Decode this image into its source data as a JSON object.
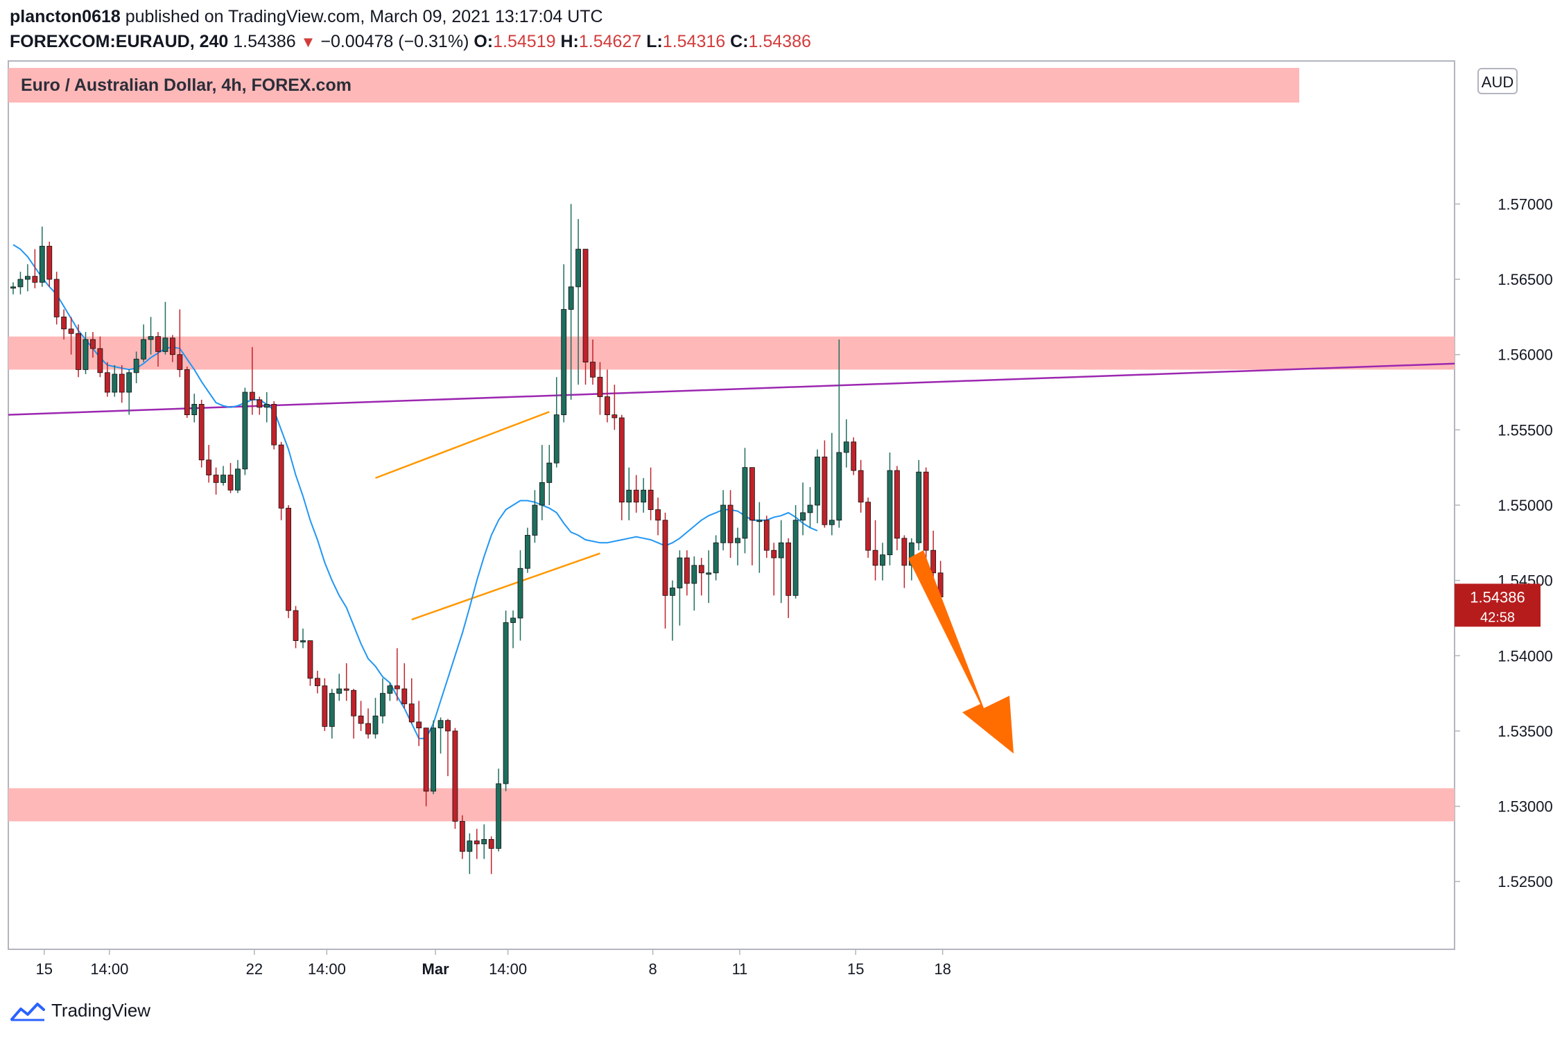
{
  "header": {
    "publisher": "plancton0618",
    "published_text": "published on TradingView.com, March 09, 2021 13:17:04 UTC",
    "symbol": "FOREXCOM:EURAUD, 240",
    "last": "1.54386",
    "change": "−0.00478 (−0.31%)",
    "o_label": "O:",
    "o_value": "1.54519",
    "h_label": "H:",
    "h_value": "1.54627",
    "l_label": "L:",
    "l_value": "1.54316",
    "c_label": "C:",
    "c_value": "1.54386"
  },
  "chart_title": "Euro / Australian Dollar, 4h, FOREX.com",
  "currency_badge": "AUD",
  "price_tag": {
    "price": "1.54386",
    "countdown": "42:58"
  },
  "footer": {
    "brand": "TradingView"
  },
  "colors": {
    "up": "#1e6e5e",
    "down": "#c0222a",
    "ma": "#2196f3",
    "zone": "#ffb8b8",
    "trendline": "#9c27b0",
    "channel": "#ff9800",
    "arrow": "#ff6d00",
    "tag": "#b71c1c"
  },
  "chart_data": {
    "type": "candlestick",
    "title": "Euro / Australian Dollar, 4h, FOREX.com",
    "y_axis": {
      "range": [
        1.5205,
        1.5795
      ],
      "ticks": [
        "1.52500",
        "1.53000",
        "1.53500",
        "1.54000",
        "1.54500",
        "1.55000",
        "1.55500",
        "1.56000",
        "1.56500",
        "1.57000"
      ]
    },
    "x_axis": {
      "ticks": [
        {
          "label": "15",
          "bar": 4
        },
        {
          "label": "14:00",
          "bar": 13
        },
        {
          "label": "22",
          "bar": 33
        },
        {
          "label": "14:00",
          "bar": 43
        },
        {
          "label": "Mar",
          "bar": 58
        },
        {
          "label": "14:00",
          "bar": 68
        },
        {
          "label": "8",
          "bar": 88
        },
        {
          "label": "11",
          "bar": 100
        },
        {
          "label": "15",
          "bar": 116
        },
        {
          "label": "18",
          "bar": 128
        }
      ]
    },
    "candles": [
      [
        1.5645,
        1.5645,
        1.564,
        1.5648
      ],
      [
        1.5645,
        1.565,
        1.564,
        1.5655
      ],
      [
        1.565,
        1.5652,
        1.5642,
        1.566
      ],
      [
        1.5652,
        1.5648,
        1.5644,
        1.567
      ],
      [
        1.5648,
        1.5672,
        1.5645,
        1.5685
      ],
      [
        1.5672,
        1.565,
        1.5645,
        1.5675
      ],
      [
        1.565,
        1.5625,
        1.562,
        1.5655
      ],
      [
        1.5625,
        1.5617,
        1.561,
        1.563
      ],
      [
        1.5617,
        1.5614,
        1.56,
        1.5625
      ],
      [
        1.5614,
        1.559,
        1.5585,
        1.562
      ],
      [
        1.559,
        1.561,
        1.5587,
        1.5615
      ],
      [
        1.561,
        1.5604,
        1.5598,
        1.5615
      ],
      [
        1.5604,
        1.5588,
        1.5585,
        1.5612
      ],
      [
        1.5588,
        1.5575,
        1.5572,
        1.5595
      ],
      [
        1.5575,
        1.5587,
        1.5572,
        1.5593
      ],
      [
        1.5587,
        1.5575,
        1.5568,
        1.5593
      ],
      [
        1.5575,
        1.5588,
        1.556,
        1.559
      ],
      [
        1.5588,
        1.5597,
        1.5581,
        1.5602
      ],
      [
        1.5597,
        1.561,
        1.5595,
        1.562
      ],
      [
        1.561,
        1.5612,
        1.56,
        1.5625
      ],
      [
        1.5612,
        1.5602,
        1.5592,
        1.5615
      ],
      [
        1.5602,
        1.5611,
        1.56,
        1.5635
      ],
      [
        1.5611,
        1.56,
        1.5595,
        1.5613
      ],
      [
        1.56,
        1.559,
        1.5585,
        1.563
      ],
      [
        1.559,
        1.556,
        1.5558,
        1.5592
      ],
      [
        1.556,
        1.5567,
        1.5555,
        1.5574
      ],
      [
        1.5567,
        1.553,
        1.5525,
        1.557
      ],
      [
        1.553,
        1.552,
        1.5515,
        1.554
      ],
      [
        1.552,
        1.5515,
        1.5507,
        1.5525
      ],
      [
        1.5515,
        1.552,
        1.5513,
        1.5526
      ],
      [
        1.552,
        1.551,
        1.5508,
        1.5528
      ],
      [
        1.551,
        1.5524,
        1.5508,
        1.553
      ],
      [
        1.5524,
        1.5575,
        1.552,
        1.5578
      ],
      [
        1.5575,
        1.557,
        1.556,
        1.5605
      ],
      [
        1.557,
        1.5565,
        1.556,
        1.5572
      ],
      [
        1.5565,
        1.5567,
        1.5555,
        1.5575
      ],
      [
        1.5567,
        1.554,
        1.5537,
        1.5569
      ],
      [
        1.554,
        1.5498,
        1.549,
        1.5542
      ],
      [
        1.5498,
        1.543,
        1.5425,
        1.55
      ],
      [
        1.543,
        1.541,
        1.5405,
        1.5433
      ],
      [
        1.541,
        1.541,
        1.5405,
        1.5418
      ],
      [
        1.541,
        1.5385,
        1.538,
        1.541
      ],
      [
        1.5385,
        1.538,
        1.5375,
        1.539
      ],
      [
        1.538,
        1.5353,
        1.535,
        1.5385
      ],
      [
        1.5353,
        1.5375,
        1.5345,
        1.5378
      ],
      [
        1.5375,
        1.5378,
        1.537,
        1.5388
      ],
      [
        1.5378,
        1.5377,
        1.537,
        1.5395
      ],
      [
        1.5377,
        1.536,
        1.5345,
        1.5378
      ],
      [
        1.536,
        1.5355,
        1.535,
        1.537
      ],
      [
        1.5355,
        1.5348,
        1.5345,
        1.5365
      ],
      [
        1.5348,
        1.536,
        1.5345,
        1.5372
      ],
      [
        1.536,
        1.5375,
        1.5355,
        1.5385
      ],
      [
        1.5375,
        1.538,
        1.537,
        1.5382
      ],
      [
        1.538,
        1.5378,
        1.537,
        1.5405
      ],
      [
        1.5378,
        1.5368,
        1.5365,
        1.5395
      ],
      [
        1.5368,
        1.5356,
        1.5355,
        1.5385
      ],
      [
        1.5356,
        1.5352,
        1.534,
        1.537
      ],
      [
        1.5352,
        1.531,
        1.53,
        1.5352
      ],
      [
        1.531,
        1.5352,
        1.5308,
        1.5357
      ],
      [
        1.5352,
        1.5357,
        1.5335,
        1.5359
      ],
      [
        1.5357,
        1.535,
        1.532,
        1.5358
      ],
      [
        1.535,
        1.529,
        1.5285,
        1.5352
      ],
      [
        1.529,
        1.527,
        1.5265,
        1.5294
      ],
      [
        1.527,
        1.5277,
        1.5255,
        1.5282
      ],
      [
        1.5277,
        1.5275,
        1.5265,
        1.5285
      ],
      [
        1.5275,
        1.5278,
        1.5265,
        1.5288
      ],
      [
        1.5278,
        1.5272,
        1.5255,
        1.528
      ],
      [
        1.5272,
        1.5315,
        1.527,
        1.5325
      ],
      [
        1.5315,
        1.5422,
        1.531,
        1.543
      ],
      [
        1.5422,
        1.5425,
        1.5405,
        1.543
      ],
      [
        1.5425,
        1.5458,
        1.541,
        1.547
      ],
      [
        1.5458,
        1.548,
        1.5455,
        1.5485
      ],
      [
        1.548,
        1.55,
        1.5475,
        1.551
      ],
      [
        1.55,
        1.5515,
        1.549,
        1.554
      ],
      [
        1.5515,
        1.5528,
        1.55,
        1.554
      ],
      [
        1.5528,
        1.556,
        1.5525,
        1.5585
      ],
      [
        1.556,
        1.563,
        1.5555,
        1.566
      ],
      [
        1.563,
        1.5645,
        1.557,
        1.57
      ],
      [
        1.5645,
        1.567,
        1.558,
        1.569
      ],
      [
        1.567,
        1.5595,
        1.558,
        1.567
      ],
      [
        1.5595,
        1.5585,
        1.558,
        1.561
      ],
      [
        1.5585,
        1.5572,
        1.556,
        1.5595
      ],
      [
        1.5572,
        1.556,
        1.5555,
        1.559
      ],
      [
        1.556,
        1.5558,
        1.555,
        1.558
      ],
      [
        1.5558,
        1.5502,
        1.549,
        1.556
      ],
      [
        1.5502,
        1.551,
        1.549,
        1.5525
      ],
      [
        1.551,
        1.5502,
        1.5495,
        1.552
      ],
      [
        1.5502,
        1.551,
        1.5495,
        1.5518
      ],
      [
        1.551,
        1.5497,
        1.549,
        1.5525
      ],
      [
        1.5497,
        1.549,
        1.548,
        1.5505
      ],
      [
        1.549,
        1.544,
        1.5418,
        1.5495
      ],
      [
        1.544,
        1.5445,
        1.541,
        1.545
      ],
      [
        1.5445,
        1.5465,
        1.542,
        1.547
      ],
      [
        1.5465,
        1.5448,
        1.544,
        1.547
      ],
      [
        1.5448,
        1.546,
        1.543,
        1.5466
      ],
      [
        1.546,
        1.5455,
        1.544,
        1.5465
      ],
      [
        1.5455,
        1.5455,
        1.5435,
        1.547
      ],
      [
        1.5455,
        1.5475,
        1.545,
        1.548
      ],
      [
        1.5475,
        1.55,
        1.547,
        1.551
      ],
      [
        1.55,
        1.5475,
        1.5465,
        1.551
      ],
      [
        1.5475,
        1.5478,
        1.546,
        1.5485
      ],
      [
        1.5478,
        1.5525,
        1.5468,
        1.5538
      ],
      [
        1.5525,
        1.549,
        1.546,
        1.5525
      ],
      [
        1.549,
        1.549,
        1.5455,
        1.5502
      ],
      [
        1.549,
        1.547,
        1.5465,
        1.5493
      ],
      [
        1.547,
        1.5465,
        1.544,
        1.5475
      ],
      [
        1.5465,
        1.5475,
        1.5435,
        1.549
      ],
      [
        1.5475,
        1.544,
        1.5425,
        1.5478
      ],
      [
        1.544,
        1.549,
        1.5438,
        1.55
      ],
      [
        1.549,
        1.5495,
        1.548,
        1.5515
      ],
      [
        1.5495,
        1.55,
        1.5485,
        1.5512
      ],
      [
        1.55,
        1.5532,
        1.5488,
        1.5537
      ],
      [
        1.5532,
        1.5487,
        1.5485,
        1.5543
      ],
      [
        1.5487,
        1.549,
        1.548,
        1.5548
      ],
      [
        1.549,
        1.5535,
        1.5485,
        1.561
      ],
      [
        1.5535,
        1.5542,
        1.5525,
        1.5557
      ],
      [
        1.5542,
        1.5523,
        1.552,
        1.5545
      ],
      [
        1.5523,
        1.5502,
        1.5495,
        1.553
      ],
      [
        1.5502,
        1.547,
        1.5465,
        1.5505
      ],
      [
        1.547,
        1.546,
        1.545,
        1.549
      ],
      [
        1.546,
        1.5467,
        1.545,
        1.5475
      ],
      [
        1.5467,
        1.5523,
        1.546,
        1.5535
      ],
      [
        1.5523,
        1.5478,
        1.547,
        1.5526
      ],
      [
        1.5478,
        1.546,
        1.5445,
        1.548
      ],
      [
        1.546,
        1.5475,
        1.545,
        1.5478
      ],
      [
        1.5475,
        1.5522,
        1.547,
        1.553
      ],
      [
        1.5522,
        1.547,
        1.5463,
        1.5525
      ],
      [
        1.547,
        1.5455,
        1.544,
        1.5483
      ],
      [
        1.5455,
        1.5439,
        1.5432,
        1.5463
      ]
    ],
    "moving_average": [
      1.5673,
      1.567,
      1.5665,
      1.5658,
      1.5651,
      1.5645,
      1.564,
      1.5632,
      1.5624,
      1.5616,
      1.561,
      1.5604,
      1.5598,
      1.5593,
      1.5592,
      1.5591,
      1.559,
      1.5591,
      1.5594,
      1.5598,
      1.5601,
      1.5604,
      1.5605,
      1.5604,
      1.5597,
      1.559,
      1.5582,
      1.5575,
      1.5568,
      1.5566,
      1.5565,
      1.5566,
      1.5568,
      1.557,
      1.557,
      1.5567,
      1.5563,
      1.555,
      1.5537,
      1.552,
      1.5506,
      1.549,
      1.5477,
      1.5462,
      1.545,
      1.544,
      1.5432,
      1.542,
      1.5408,
      1.5398,
      1.5393,
      1.5386,
      1.5382,
      1.5373,
      1.5365,
      1.5355,
      1.5345,
      1.5345,
      1.5355,
      1.537,
      1.5385,
      1.54,
      1.5415,
      1.5432,
      1.545,
      1.5466,
      1.548,
      1.549,
      1.5497,
      1.55,
      1.5503,
      1.5503,
      1.5502,
      1.55,
      1.5498,
      1.5495,
      1.5488,
      1.5482,
      1.548,
      1.5477,
      1.5476,
      1.5475,
      1.5475,
      1.5476,
      1.5477,
      1.5478,
      1.5479,
      1.5478,
      1.5477,
      1.5475,
      1.5473,
      1.5475,
      1.5478,
      1.5482,
      1.5486,
      1.549,
      1.5493,
      1.5495,
      1.5497,
      1.5497,
      1.5496,
      1.5493,
      1.549,
      1.549,
      1.549,
      1.5492,
      1.5493,
      1.5495,
      1.5492,
      1.5488,
      1.5485,
      1.5483
    ],
    "annotations": {
      "resistance_zones": [
        [
          1.559,
          1.5612
        ],
        [
          1.529,
          1.5312
        ]
      ],
      "trendline": {
        "from": [
          0,
          1.556
        ],
        "to": [
          128,
          1.5594
        ]
      },
      "channel_upper": {
        "from": [
          50,
          1.5518
        ],
        "to": [
          74,
          1.5562
        ]
      },
      "channel_lower": {
        "from": [
          55,
          1.5424
        ],
        "to": [
          81,
          1.5468
        ]
      },
      "arrow_target_price": 1.5335
    }
  }
}
